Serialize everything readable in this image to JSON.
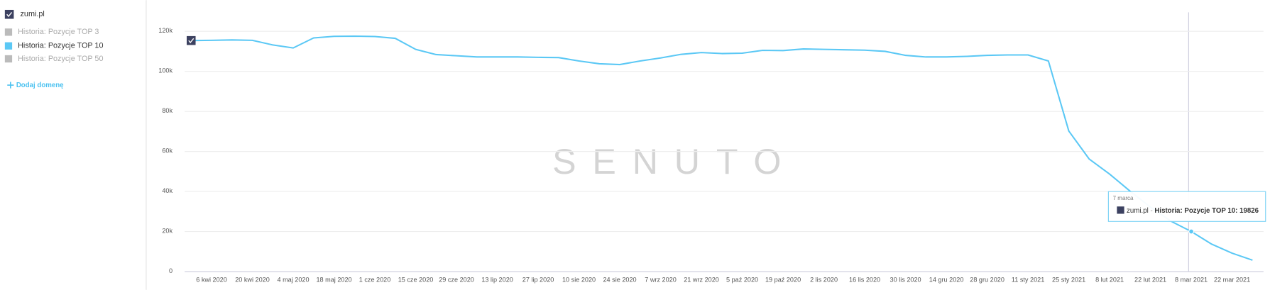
{
  "sidebar": {
    "domain": "zumi.pl",
    "hidden_series": [
      "Historia: Pozycje TOP 3",
      "Historia: Pozycje TOP 50"
    ],
    "add_domain": "Dodaj domenę"
  },
  "watermark": "SENUTO",
  "tooltip": {
    "date": "7 marca",
    "separator": "-",
    "label": "Historia: Pozycje TOP 10:"
  },
  "chart_data": {
    "type": "line",
    "categories": [
      null,
      "6 kwi 2020",
      null,
      "20 kwi 2020",
      null,
      "4 maj 2020",
      null,
      "18 maj 2020",
      null,
      "1 cze 2020",
      null,
      "15 cze 2020",
      null,
      "29 cze 2020",
      null,
      "13 lip 2020",
      null,
      "27 lip 2020",
      null,
      "10 sie 2020",
      null,
      "24 sie 2020",
      null,
      "7 wrz 2020",
      null,
      "21 wrz 2020",
      null,
      "5 paź 2020",
      null,
      "19 paź 2020",
      null,
      "2 lis 2020",
      null,
      "16 lis 2020",
      null,
      "30 lis 2020",
      null,
      "14 gru 2020",
      null,
      "28 gru 2020",
      null,
      "11 sty 2021",
      null,
      "25 sty 2021",
      null,
      "8 lut 2021",
      null,
      "22 lut 2021",
      null,
      "8 mar 2021",
      null,
      "22 mar 2021",
      null
    ],
    "series": [
      {
        "name": "Historia: Pozycje TOP 10",
        "color": "#5bc8f5",
        "values": [
          115200,
          115300,
          115500,
          115300,
          113000,
          111500,
          116500,
          117300,
          117400,
          117200,
          116300,
          110800,
          108200,
          107600,
          107000,
          107000,
          107000,
          106800,
          106700,
          105000,
          103600,
          103200,
          105000,
          106500,
          108300,
          109200,
          108700,
          108900,
          110300,
          110200,
          111000,
          110800,
          110600,
          110400,
          109800,
          107800,
          107000,
          107000,
          107300,
          107800,
          108000,
          108000,
          105000,
          70000,
          56000,
          48500,
          40000,
          32000,
          25000,
          19826,
          13500,
          9000,
          5500
        ]
      }
    ],
    "ylim": [
      0,
      120000
    ],
    "yticks": [
      0,
      {
        "value": 20000,
        "label": "20k"
      },
      {
        "value": 40000,
        "label": "40k"
      },
      {
        "value": 60000,
        "label": "60k"
      },
      {
        "value": 80000,
        "label": "80k"
      },
      {
        "value": 100000,
        "label": "100k"
      },
      {
        "value": 120000,
        "label": "120k"
      }
    ],
    "grid": true
  }
}
